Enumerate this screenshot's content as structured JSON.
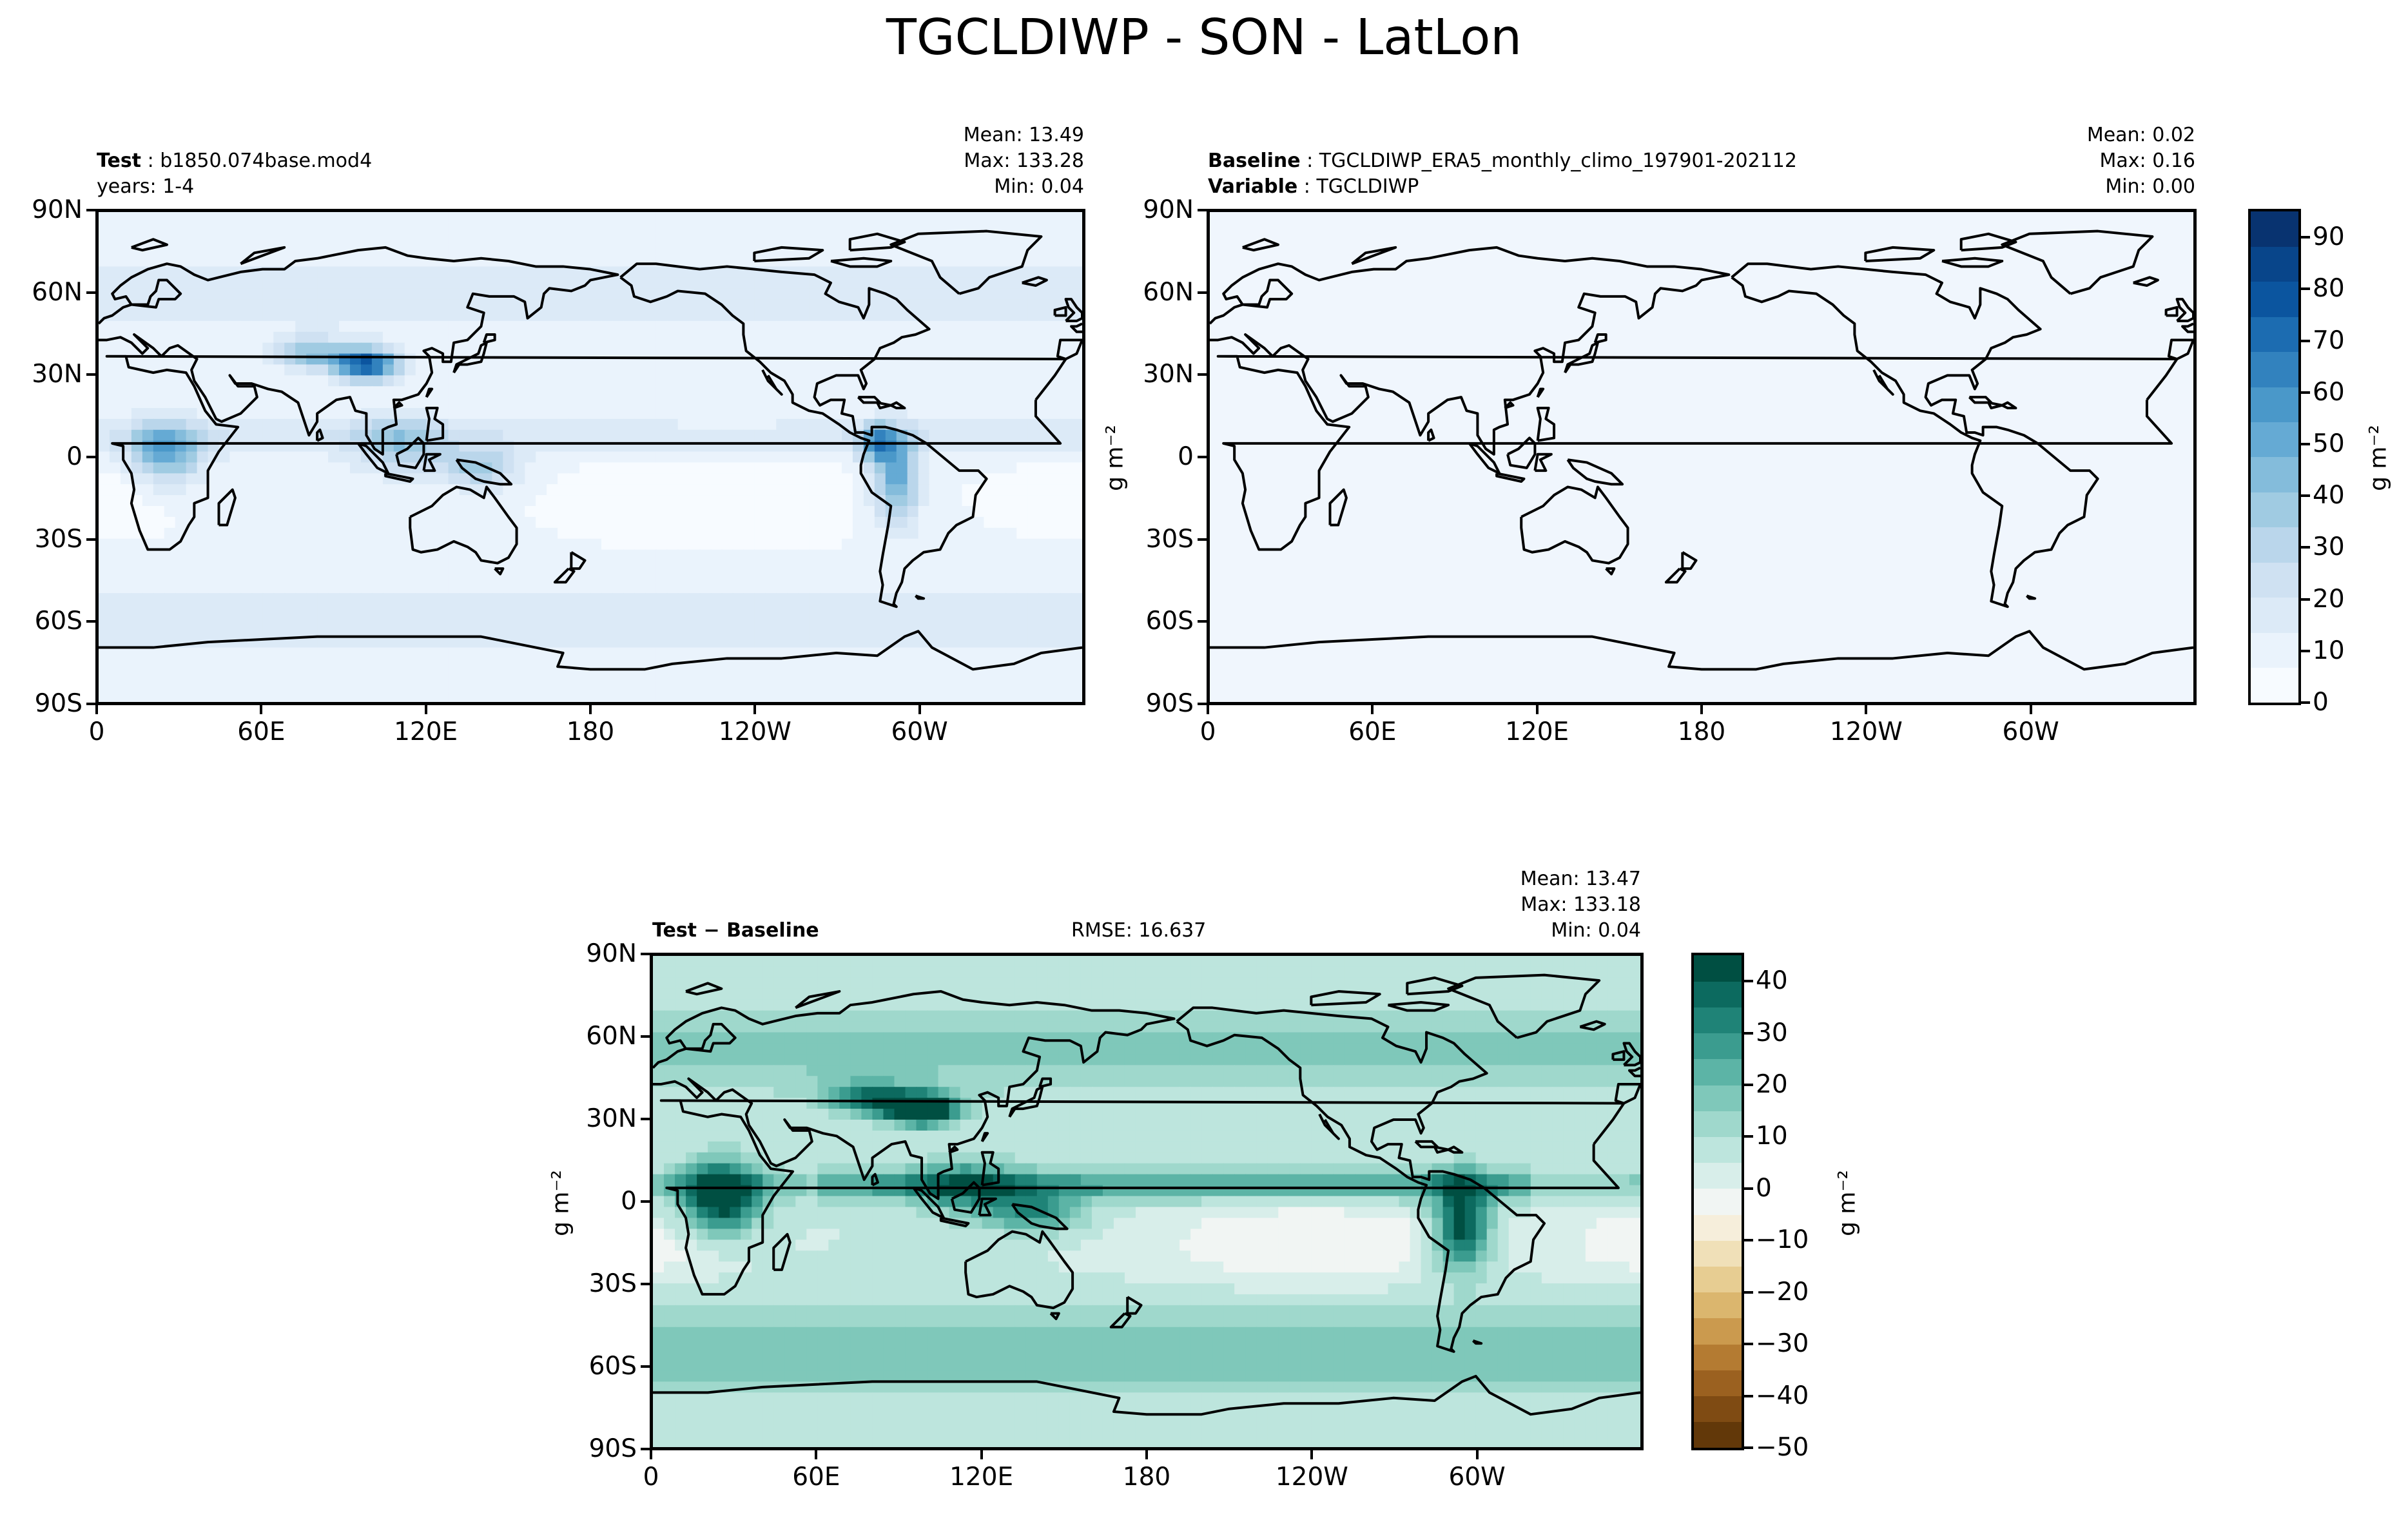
{
  "title": "TGCLDIWP - SON - LatLon",
  "chart_data": [
    {
      "type": "heatmap",
      "panel": "test",
      "label_bold": "Test",
      "label_text": "b1850.074base.mod4",
      "sublabel": "years: 1-4",
      "stats": {
        "mean": "Mean: 13.49",
        "max": "Max: 133.28",
        "min": "Min:  0.04"
      },
      "xticks": [
        "0",
        "60E",
        "120E",
        "180",
        "120W",
        "60W"
      ],
      "yticks": [
        "90N",
        "60N",
        "30N",
        "0",
        "30S",
        "60S",
        "90S"
      ],
      "ylabel": "g m⁻²",
      "field_description": "cloud ice water path with maxima over Tibet/China (~90), Central Africa (~50-60), tropical Andes/South America, Maritime Continent; 10-30 elsewhere",
      "hotspots": [
        {
          "lon": 100,
          "lat": 35,
          "value": 85
        },
        {
          "lon": 25,
          "lat": 2,
          "value": 55
        },
        {
          "lon": 295,
          "lat": -10,
          "value": 50
        },
        {
          "lon": 285,
          "lat": 5,
          "value": 60
        },
        {
          "lon": 140,
          "lat": -5,
          "value": 45
        },
        {
          "lon": 110,
          "lat": 5,
          "value": 40
        }
      ]
    },
    {
      "type": "heatmap",
      "panel": "baseline",
      "label_bold": "Baseline",
      "label_text": "TGCLDIWP_ERA5_monthly_climo_197901-202112",
      "label2_bold": "Variable",
      "label2_text": "TGCLDIWP",
      "stats": {
        "mean": "Mean:  0.02",
        "max": "Max:  0.16",
        "min": "Min:  0.00"
      },
      "xticks": [
        "0",
        "60E",
        "120E",
        "180",
        "120W",
        "60W"
      ],
      "yticks": [
        "90N",
        "60N",
        "30N",
        "0",
        "30S",
        "60S",
        "90S"
      ],
      "colorbar": {
        "ticks": [
          "90",
          "80",
          "70",
          "60",
          "50",
          "40",
          "30",
          "20",
          "10",
          "0"
        ],
        "label": "g m⁻²",
        "range": [
          0,
          95
        ]
      }
    },
    {
      "type": "heatmap",
      "panel": "difference",
      "label_bold_a": "Test",
      "label_sep": " − ",
      "label_bold_b": "Baseline",
      "rmse": "RMSE: 16.637",
      "stats": {
        "mean": "Mean: 13.47",
        "max": "Max: 133.18",
        "min": "Min:  0.04"
      },
      "xticks": [
        "0",
        "60E",
        "120E",
        "180",
        "120W",
        "60W"
      ],
      "yticks": [
        "90N",
        "60N",
        "30N",
        "0",
        "30S",
        "60S",
        "90S"
      ],
      "ylabel": "g m⁻²",
      "colorbar": {
        "ticks": [
          "40",
          "30",
          "20",
          "10",
          "0",
          "−10",
          "−20",
          "−30",
          "−40",
          "−50"
        ],
        "label": "g m⁻²",
        "range": [
          -50,
          45
        ]
      }
    }
  ],
  "colors": {
    "blues": [
      "#f7fbff",
      "#eaf3fc",
      "#dceaf7",
      "#cfe1f2",
      "#bad6eb",
      "#a0cbe2",
      "#84bcdb",
      "#65aad4",
      "#4a98c9",
      "#3282be",
      "#1c6cb1",
      "#0b559f",
      "#08458a",
      "#083370"
    ],
    "brbg_pos": [
      "#f1f5f3",
      "#d8eeea",
      "#bde5dd",
      "#9fd8cc",
      "#7fc8ba",
      "#5cb4a6",
      "#3b9c8f",
      "#1f8377",
      "#0c6a5f",
      "#004f42"
    ],
    "brbg_neg": [
      "#f6eedb",
      "#f0e0b8",
      "#e7cd92",
      "#dbb66e",
      "#cb9a4e",
      "#b47b32",
      "#9b6120",
      "#7f4b13",
      "#623809",
      "#4a2905"
    ]
  }
}
